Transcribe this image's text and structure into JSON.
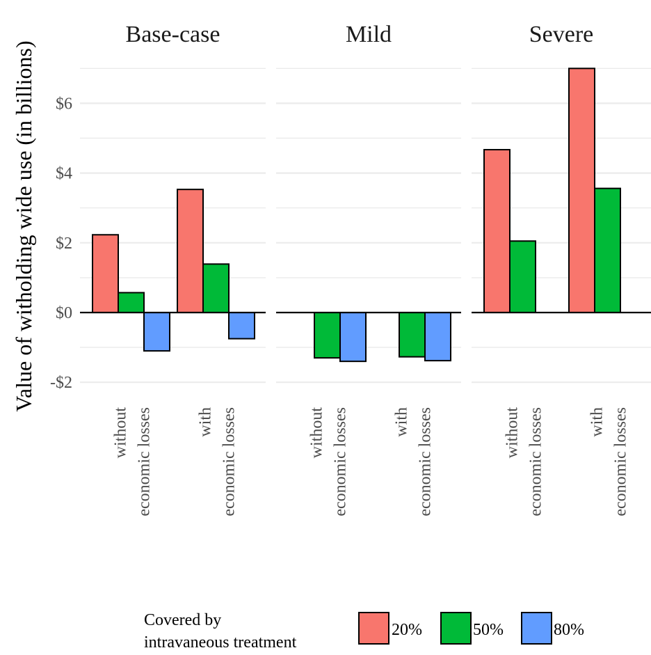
{
  "chart_data": {
    "type": "bar",
    "ylabel": "Value of witholding wide use (in billions)",
    "ylim": [
      -2.4,
      7.0
    ],
    "y_ticks": [
      {
        "value": -2,
        "label": "-$2"
      },
      {
        "value": 0,
        "label": "$0"
      },
      {
        "value": 2,
        "label": "$2"
      },
      {
        "value": 4,
        "label": "$4"
      },
      {
        "value": 6,
        "label": "$6"
      }
    ],
    "categories": [
      [
        "without",
        "economic losses"
      ],
      [
        "with",
        "economic losses"
      ]
    ],
    "facets": [
      {
        "title": "Base-case",
        "series": [
          {
            "name": "20%",
            "values": [
              2.23,
              3.53
            ]
          },
          {
            "name": "50%",
            "values": [
              0.57,
              1.39
            ]
          },
          {
            "name": "80%",
            "values": [
              -1.1,
              -0.75
            ]
          }
        ]
      },
      {
        "title": "Mild",
        "series": [
          {
            "name": "20%",
            "values": [
              0,
              0
            ]
          },
          {
            "name": "50%",
            "values": [
              -1.3,
              -1.27
            ]
          },
          {
            "name": "80%",
            "values": [
              -1.4,
              -1.38
            ]
          }
        ]
      },
      {
        "title": "Severe",
        "series": [
          {
            "name": "20%",
            "values": [
              4.67,
              7.0
            ]
          },
          {
            "name": "50%",
            "values": [
              2.05,
              3.56
            ]
          },
          {
            "name": "80%",
            "values": [
              0,
              0
            ]
          }
        ]
      }
    ],
    "legend": {
      "title_lines": [
        "Covered by",
        "intravaneous treatment"
      ],
      "position": "bottom",
      "items": [
        {
          "label": "20%",
          "color": "#F8766D"
        },
        {
          "label": "50%",
          "color": "#00BA38"
        },
        {
          "label": "80%",
          "color": "#619CFF"
        }
      ]
    },
    "grid": true,
    "colors": {
      "grid": "#ebebeb",
      "zero_line": "#000000",
      "bar_outline": "#000000"
    }
  }
}
